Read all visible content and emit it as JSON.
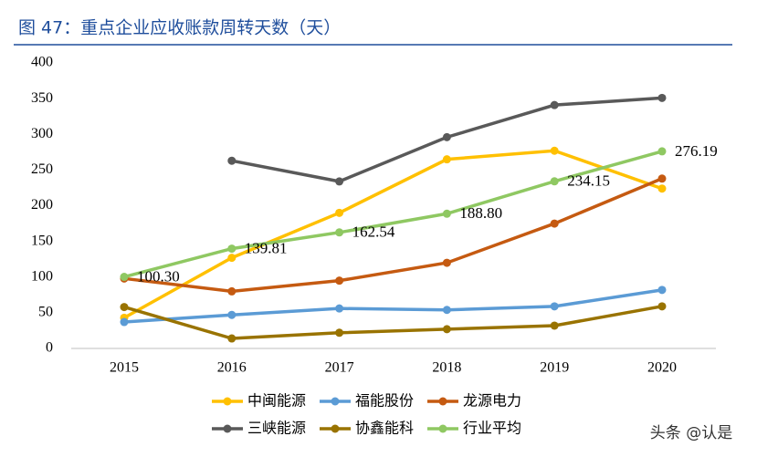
{
  "chart_data": {
    "type": "line",
    "title": "图 47：重点企业应收账款周转天数（天）",
    "categories": [
      "2015",
      "2016",
      "2017",
      "2018",
      "2019",
      "2020"
    ],
    "series": [
      {
        "name": "中闽能源",
        "color": "#ffc000",
        "values": [
          43,
          127,
          190,
          265,
          277,
          224
        ]
      },
      {
        "name": "福能股份",
        "color": "#5b9bd5",
        "values": [
          37,
          47,
          56,
          54,
          59,
          82
        ]
      },
      {
        "name": "龙源电力",
        "color": "#c55a11",
        "values": [
          98,
          80,
          95,
          120,
          175,
          238
        ]
      },
      {
        "name": "三峡能源",
        "color": "#595959",
        "values": [
          null,
          263,
          234,
          296,
          341,
          351
        ]
      },
      {
        "name": "协鑫能科",
        "color": "#997300",
        "values": [
          58,
          14,
          22,
          27,
          32,
          59
        ]
      },
      {
        "name": "行业平均",
        "color": "#8fc862",
        "values": [
          100.3,
          139.81,
          162.54,
          188.8,
          234.15,
          276.19
        ],
        "value_labels": [
          "100.30",
          "139.81",
          "162.54",
          "188.80",
          "234.15",
          "276.19"
        ]
      }
    ],
    "ylim": [
      0,
      400
    ],
    "yticks": [
      0,
      50,
      100,
      150,
      200,
      250,
      300,
      350,
      400
    ],
    "grid": false,
    "watermark": "头条 @认是"
  }
}
